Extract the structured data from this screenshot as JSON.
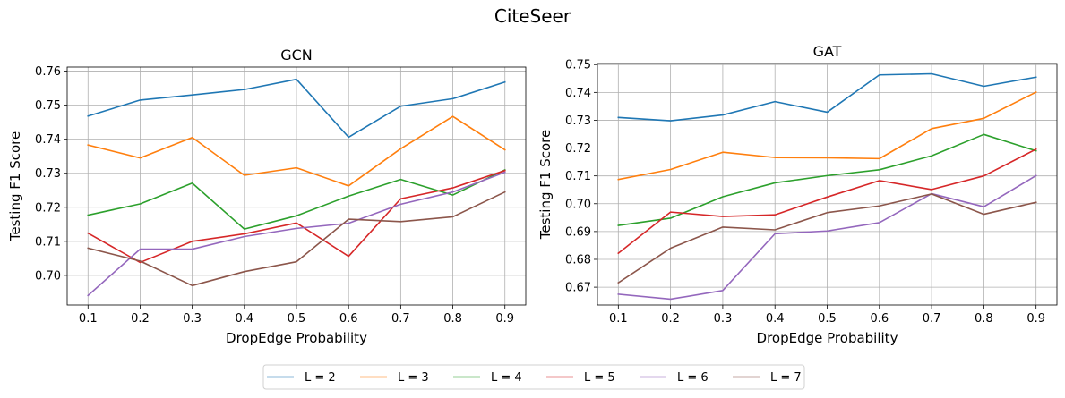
{
  "figure": {
    "suptitle": "CiteSeer"
  },
  "colors": [
    "#1f77b4",
    "#ff7f0e",
    "#2ca02c",
    "#d62728",
    "#9467bd",
    "#8c564b"
  ],
  "legend": {
    "placement": "bottom-center",
    "entries": [
      "L = 2",
      "L = 3",
      "L = 4",
      "L = 5",
      "L = 6",
      "L = 7"
    ]
  },
  "chart_data": [
    {
      "type": "line",
      "title": "GCN",
      "xlabel": "DropEdge Probability",
      "ylabel": "Testing F1 Score",
      "x": [
        0.1,
        0.2,
        0.3,
        0.4,
        0.5,
        0.6,
        0.7,
        0.8,
        0.9
      ],
      "xticks": [
        "0.1",
        "0.2",
        "0.3",
        "0.4",
        "0.5",
        "0.6",
        "0.7",
        "0.8",
        "0.9"
      ],
      "yticks": [
        "0.70",
        "0.71",
        "0.72",
        "0.73",
        "0.74",
        "0.75",
        "0.76"
      ],
      "xlim": [
        0.06,
        0.94
      ],
      "ylim": [
        0.6913,
        0.7612
      ],
      "grid": true,
      "series": [
        {
          "name": "L = 2",
          "values": [
            0.7468,
            0.7515,
            0.753,
            0.7546,
            0.7576,
            0.7406,
            0.7497,
            0.7519,
            0.7568
          ]
        },
        {
          "name": "L = 3",
          "values": [
            0.7383,
            0.7345,
            0.7405,
            0.7294,
            0.7316,
            0.7263,
            0.7372,
            0.7467,
            0.7369
          ]
        },
        {
          "name": "L = 4",
          "values": [
            0.7177,
            0.721,
            0.7271,
            0.7136,
            0.7175,
            0.7233,
            0.7282,
            0.7236,
            0.731
          ]
        },
        {
          "name": "L = 5",
          "values": [
            0.7124,
            0.7038,
            0.71,
            0.7122,
            0.7154,
            0.7056,
            0.7225,
            0.7257,
            0.7308
          ]
        },
        {
          "name": "L = 6",
          "values": [
            0.6941,
            0.7077,
            0.7077,
            0.7114,
            0.7138,
            0.7153,
            0.7209,
            0.7245,
            0.7303
          ]
        },
        {
          "name": "L = 7",
          "values": [
            0.708,
            0.7042,
            0.697,
            0.7011,
            0.704,
            0.7165,
            0.7158,
            0.7172,
            0.7245
          ]
        }
      ]
    },
    {
      "type": "line",
      "title": "GAT",
      "xlabel": "DropEdge Probability",
      "ylabel": "Testing F1 Score",
      "x": [
        0.1,
        0.2,
        0.3,
        0.4,
        0.5,
        0.6,
        0.7,
        0.8,
        0.9
      ],
      "xticks": [
        "0.1",
        "0.2",
        "0.3",
        "0.4",
        "0.5",
        "0.6",
        "0.7",
        "0.8",
        "0.9"
      ],
      "yticks": [
        "0.67",
        "0.68",
        "0.69",
        "0.70",
        "0.71",
        "0.72",
        "0.73",
        "0.74",
        "0.75"
      ],
      "xlim": [
        0.06,
        0.94
      ],
      "ylim": [
        0.6636,
        0.7504
      ],
      "grid": true,
      "series": [
        {
          "name": "L = 2",
          "values": [
            0.731,
            0.7298,
            0.7319,
            0.7367,
            0.7329,
            0.7463,
            0.7467,
            0.7422,
            0.7455
          ]
        },
        {
          "name": "L = 3",
          "values": [
            0.7087,
            0.7123,
            0.7185,
            0.7166,
            0.7165,
            0.7162,
            0.727,
            0.7307,
            0.7401
          ]
        },
        {
          "name": "L = 4",
          "values": [
            0.6922,
            0.6948,
            0.7025,
            0.7075,
            0.7101,
            0.7122,
            0.7172,
            0.7249,
            0.719
          ]
        },
        {
          "name": "L = 5",
          "values": [
            0.6822,
            0.697,
            0.6954,
            0.696,
            0.7024,
            0.7083,
            0.7051,
            0.71,
            0.7196
          ]
        },
        {
          "name": "L = 6",
          "values": [
            0.6675,
            0.6657,
            0.6688,
            0.6892,
            0.6902,
            0.6932,
            0.7036,
            0.6989,
            0.7101
          ]
        },
        {
          "name": "L = 7",
          "values": [
            0.6716,
            0.684,
            0.6916,
            0.6906,
            0.6968,
            0.6992,
            0.7035,
            0.6962,
            0.7005
          ]
        }
      ]
    }
  ]
}
